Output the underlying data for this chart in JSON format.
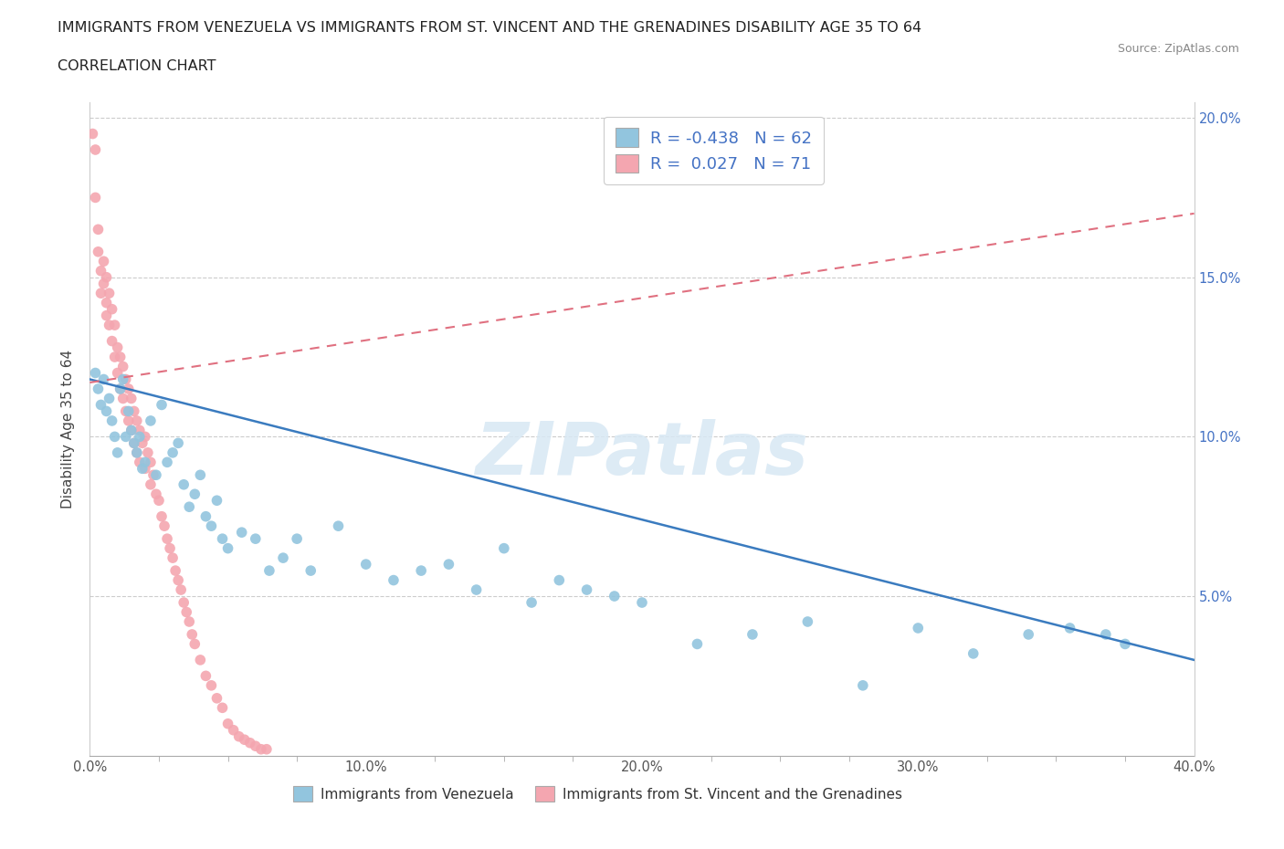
{
  "title_line1": "IMMIGRANTS FROM VENEZUELA VS IMMIGRANTS FROM ST. VINCENT AND THE GRENADINES DISABILITY AGE 35 TO 64",
  "title_line2": "CORRELATION CHART",
  "source_text": "Source: ZipAtlas.com",
  "ylabel": "Disability Age 35 to 64",
  "xmin": 0.0,
  "xmax": 0.4,
  "ymin": 0.0,
  "ymax": 0.205,
  "watermark": "ZIPatlas",
  "legend_label1": "Immigrants from Venezuela",
  "legend_label2": "Immigrants from St. Vincent and the Grenadines",
  "R1": -0.438,
  "N1": 62,
  "R2": 0.027,
  "N2": 71,
  "color1": "#92c5de",
  "color2": "#f4a6b0",
  "trendline1_color": "#3a7bbf",
  "trendline2_color": "#e07080",
  "trendline1_start_y": 0.118,
  "trendline1_end_y": 0.03,
  "trendline2_start_y": 0.117,
  "trendline2_end_y": 0.17,
  "venezuela_x": [
    0.002,
    0.003,
    0.004,
    0.005,
    0.006,
    0.007,
    0.008,
    0.009,
    0.01,
    0.011,
    0.012,
    0.013,
    0.014,
    0.015,
    0.016,
    0.017,
    0.018,
    0.019,
    0.02,
    0.022,
    0.024,
    0.026,
    0.028,
    0.03,
    0.032,
    0.034,
    0.036,
    0.038,
    0.04,
    0.042,
    0.044,
    0.046,
    0.048,
    0.05,
    0.055,
    0.06,
    0.065,
    0.07,
    0.075,
    0.08,
    0.09,
    0.1,
    0.11,
    0.12,
    0.13,
    0.14,
    0.15,
    0.16,
    0.17,
    0.18,
    0.19,
    0.2,
    0.22,
    0.24,
    0.26,
    0.28,
    0.3,
    0.32,
    0.34,
    0.355,
    0.368,
    0.375
  ],
  "venezuela_y": [
    0.12,
    0.115,
    0.11,
    0.118,
    0.108,
    0.112,
    0.105,
    0.1,
    0.095,
    0.115,
    0.118,
    0.1,
    0.108,
    0.102,
    0.098,
    0.095,
    0.1,
    0.09,
    0.092,
    0.105,
    0.088,
    0.11,
    0.092,
    0.095,
    0.098,
    0.085,
    0.078,
    0.082,
    0.088,
    0.075,
    0.072,
    0.08,
    0.068,
    0.065,
    0.07,
    0.068,
    0.058,
    0.062,
    0.068,
    0.058,
    0.072,
    0.06,
    0.055,
    0.058,
    0.06,
    0.052,
    0.065,
    0.048,
    0.055,
    0.052,
    0.05,
    0.048,
    0.035,
    0.038,
    0.042,
    0.022,
    0.04,
    0.032,
    0.038,
    0.04,
    0.038,
    0.035
  ],
  "stv_x": [
    0.001,
    0.002,
    0.002,
    0.003,
    0.003,
    0.004,
    0.004,
    0.005,
    0.005,
    0.006,
    0.006,
    0.006,
    0.007,
    0.007,
    0.008,
    0.008,
    0.009,
    0.009,
    0.01,
    0.01,
    0.011,
    0.011,
    0.012,
    0.012,
    0.013,
    0.013,
    0.014,
    0.014,
    0.015,
    0.015,
    0.016,
    0.016,
    0.017,
    0.017,
    0.018,
    0.018,
    0.019,
    0.02,
    0.02,
    0.021,
    0.022,
    0.022,
    0.023,
    0.024,
    0.025,
    0.026,
    0.027,
    0.028,
    0.029,
    0.03,
    0.031,
    0.032,
    0.033,
    0.034,
    0.035,
    0.036,
    0.037,
    0.038,
    0.04,
    0.042,
    0.044,
    0.046,
    0.048,
    0.05,
    0.052,
    0.054,
    0.056,
    0.058,
    0.06,
    0.062,
    0.064
  ],
  "stv_y": [
    0.195,
    0.19,
    0.175,
    0.165,
    0.158,
    0.152,
    0.145,
    0.155,
    0.148,
    0.15,
    0.142,
    0.138,
    0.145,
    0.135,
    0.14,
    0.13,
    0.135,
    0.125,
    0.128,
    0.12,
    0.125,
    0.115,
    0.122,
    0.112,
    0.118,
    0.108,
    0.115,
    0.105,
    0.112,
    0.102,
    0.108,
    0.098,
    0.105,
    0.095,
    0.102,
    0.092,
    0.098,
    0.1,
    0.09,
    0.095,
    0.092,
    0.085,
    0.088,
    0.082,
    0.08,
    0.075,
    0.072,
    0.068,
    0.065,
    0.062,
    0.058,
    0.055,
    0.052,
    0.048,
    0.045,
    0.042,
    0.038,
    0.035,
    0.03,
    0.025,
    0.022,
    0.018,
    0.015,
    0.01,
    0.008,
    0.006,
    0.005,
    0.004,
    0.003,
    0.002,
    0.002
  ]
}
